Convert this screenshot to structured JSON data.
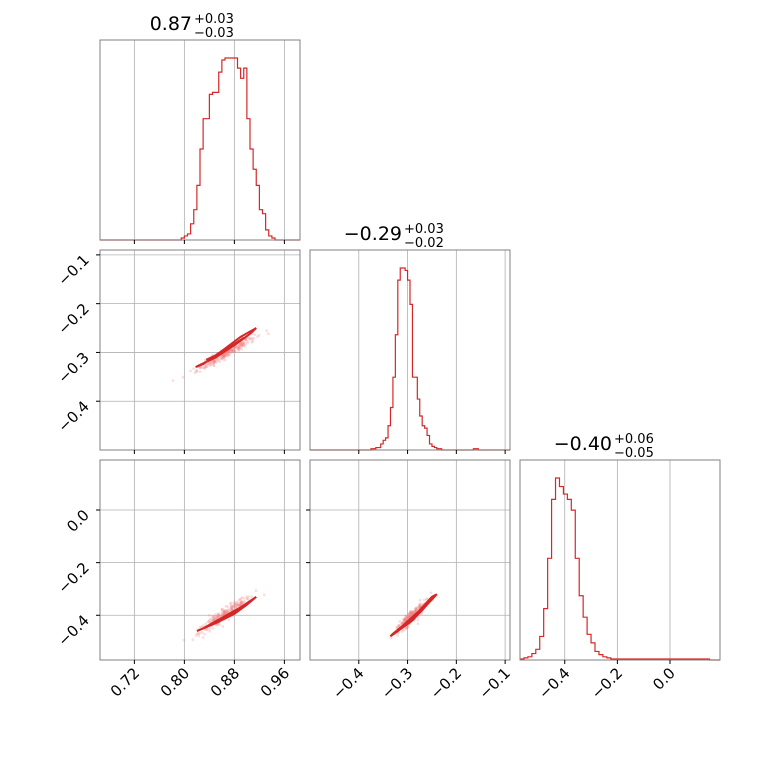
{
  "chart_data": {
    "type": "corner",
    "colors": {
      "accent": "#d62728",
      "grid": "#b0b0b0",
      "frame": "#808080"
    },
    "grid": true,
    "parameters": [
      {
        "title_value": "0.87",
        "title_plus": "+0.03",
        "title_minus": "−0.03",
        "range": [
          0.665,
          0.985
        ],
        "ticks": [
          0.72,
          0.8,
          0.88,
          0.96
        ],
        "tick_labels": [
          "0.72",
          "0.80",
          "0.88",
          "0.96"
        ]
      },
      {
        "title_value": "−0.29",
        "title_plus": "+0.03",
        "title_minus": "−0.02",
        "range": [
          -0.5,
          -0.09
        ],
        "ticks": [
          -0.4,
          -0.3,
          -0.2,
          -0.1
        ],
        "tick_labels": [
          "−0.4",
          "−0.3",
          "−0.2",
          "−0.1"
        ]
      },
      {
        "title_value": "−0.40",
        "title_plus": "+0.06",
        "title_minus": "−0.05",
        "range": [
          -0.57,
          0.19
        ],
        "ticks": [
          -0.4,
          -0.2,
          0.0
        ],
        "tick_labels": [
          "−0.4",
          "−0.2",
          "0.0"
        ]
      }
    ],
    "histograms": [
      {
        "param": 0,
        "edges": [
          0.665,
          0.795,
          0.8,
          0.805,
          0.81,
          0.815,
          0.82,
          0.825,
          0.83,
          0.835,
          0.84,
          0.845,
          0.85,
          0.855,
          0.86,
          0.865,
          0.87,
          0.875,
          0.88,
          0.885,
          0.89,
          0.895,
          0.9,
          0.905,
          0.91,
          0.915,
          0.92,
          0.925,
          0.93,
          0.935,
          0.94,
          0.945,
          0.95,
          0.955,
          0.96,
          0.965,
          0.985
        ],
        "counts": [
          0,
          1,
          2,
          3,
          8,
          15,
          27,
          45,
          60,
          60,
          72,
          73,
          73,
          83,
          89,
          90,
          90,
          90,
          90,
          85,
          80,
          85,
          60,
          45,
          35,
          27,
          15,
          13,
          5,
          2,
          1,
          0,
          0,
          0,
          0,
          0
        ]
      },
      {
        "param": 1,
        "edges": [
          -0.5,
          -0.375,
          -0.37,
          -0.365,
          -0.36,
          -0.355,
          -0.35,
          -0.345,
          -0.34,
          -0.335,
          -0.33,
          -0.325,
          -0.32,
          -0.315,
          -0.31,
          -0.305,
          -0.3,
          -0.295,
          -0.29,
          -0.285,
          -0.28,
          -0.275,
          -0.27,
          -0.265,
          -0.26,
          -0.255,
          -0.25,
          -0.245,
          -0.24,
          -0.235,
          -0.23,
          -0.225,
          -0.22,
          -0.215,
          -0.21,
          -0.205,
          -0.2,
          -0.195,
          -0.19,
          -0.185,
          -0.18,
          -0.175,
          -0.17,
          -0.165,
          -0.16,
          -0.155,
          -0.15,
          -0.145,
          -0.14,
          -0.135,
          -0.13,
          -0.125,
          -0.12,
          -0.115,
          -0.11,
          -0.105,
          -0.1,
          -0.09
        ],
        "counts": [
          0,
          1,
          1,
          2,
          2,
          5,
          8,
          10,
          20,
          35,
          60,
          95,
          140,
          150,
          150,
          148,
          140,
          120,
          60,
          60,
          42,
          28,
          20,
          18,
          12,
          5,
          3,
          2,
          1,
          1,
          0,
          0,
          0,
          0,
          0,
          0,
          0,
          0,
          0,
          0,
          0,
          0,
          0,
          1,
          1,
          0,
          0,
          0,
          0,
          0,
          0,
          0,
          0,
          0,
          0,
          0,
          0
        ]
      },
      {
        "param": 2,
        "edges": [
          -0.57,
          -0.555,
          -0.54,
          -0.525,
          -0.51,
          -0.495,
          -0.48,
          -0.465,
          -0.45,
          -0.435,
          -0.42,
          -0.405,
          -0.39,
          -0.375,
          -0.36,
          -0.345,
          -0.33,
          -0.315,
          -0.3,
          -0.285,
          -0.27,
          -0.255,
          -0.24,
          -0.225,
          -0.21,
          -0.195,
          -0.18,
          -0.165,
          -0.15,
          -0.135,
          -0.12,
          -0.105,
          -0.09,
          -0.075,
          -0.06,
          -0.045,
          -0.03,
          -0.015,
          0.0,
          0.015,
          0.03,
          0.045,
          0.06,
          0.075,
          0.09,
          0.105,
          0.12,
          0.135,
          0.15,
          0.165,
          0.19
        ],
        "counts": [
          1,
          2,
          3,
          6,
          10,
          22,
          48,
          95,
          150,
          170,
          162,
          155,
          150,
          140,
          95,
          60,
          40,
          24,
          16,
          8,
          5,
          3,
          2,
          1,
          1,
          1,
          1,
          1,
          1,
          1,
          1,
          1,
          1,
          1,
          1,
          1,
          1,
          1,
          1,
          1,
          1,
          1,
          1,
          1,
          1,
          1,
          1,
          1,
          0,
          0,
          0
        ]
      }
    ],
    "pair_plots": [
      {
        "x_param": 0,
        "y_param": 1,
        "center": [
          0.866,
          -0.302
        ],
        "direction": [
          0.13,
          0.095
        ],
        "spread_along": 0.045,
        "spread_across": 0.004,
        "n_points": 250,
        "contours": [
          {
            "x": [
              0.818,
              0.85,
              0.88,
              0.905,
              0.915,
              0.89,
              0.86,
              0.83,
              0.818
            ],
            "y": [
              -0.33,
              -0.31,
              -0.285,
              -0.262,
              -0.25,
              -0.268,
              -0.297,
              -0.324,
              -0.33
            ]
          },
          {
            "x": [
              0.835,
              0.86,
              0.885,
              0.895,
              0.875,
              0.85,
              0.835
            ],
            "y": [
              -0.315,
              -0.3,
              -0.28,
              -0.27,
              -0.287,
              -0.307,
              -0.315
            ]
          }
        ]
      },
      {
        "x_param": 0,
        "y_param": 2,
        "center": [
          0.866,
          -0.395
        ],
        "direction": [
          0.12,
          0.2
        ],
        "spread_along": 0.045,
        "spread_across": 0.006,
        "n_points": 250,
        "contours": [
          {
            "x": [
              0.82,
              0.85,
              0.88,
              0.9,
              0.915,
              0.89,
              0.86,
              0.83,
              0.82
            ],
            "y": [
              -0.46,
              -0.43,
              -0.395,
              -0.36,
              -0.33,
              -0.37,
              -0.41,
              -0.45,
              -0.46
            ]
          },
          {
            "x": [
              0.84,
              0.865,
              0.89,
              0.9,
              0.875,
              0.85,
              0.84
            ],
            "y": [
              -0.44,
              -0.41,
              -0.375,
              -0.36,
              -0.39,
              -0.425,
              -0.44
            ]
          }
        ]
      },
      {
        "x_param": 1,
        "y_param": 2,
        "center": [
          -0.292,
          -0.405
        ],
        "direction": [
          0.1,
          0.2
        ],
        "spread_along": 0.035,
        "spread_across": 0.006,
        "n_points": 250,
        "contours": [
          {
            "x": [
              -0.335,
              -0.32,
              -0.29,
              -0.26,
              -0.24,
              -0.25,
              -0.28,
              -0.31,
              -0.33,
              -0.335
            ],
            "y": [
              -0.48,
              -0.46,
              -0.42,
              -0.36,
              -0.32,
              -0.33,
              -0.39,
              -0.44,
              -0.47,
              -0.48
            ]
          },
          {
            "x": [
              -0.32,
              -0.3,
              -0.27,
              -0.26,
              -0.28,
              -0.3,
              -0.315,
              -0.32
            ],
            "y": [
              -0.455,
              -0.43,
              -0.38,
              -0.36,
              -0.39,
              -0.425,
              -0.45,
              -0.455
            ]
          }
        ]
      }
    ]
  }
}
